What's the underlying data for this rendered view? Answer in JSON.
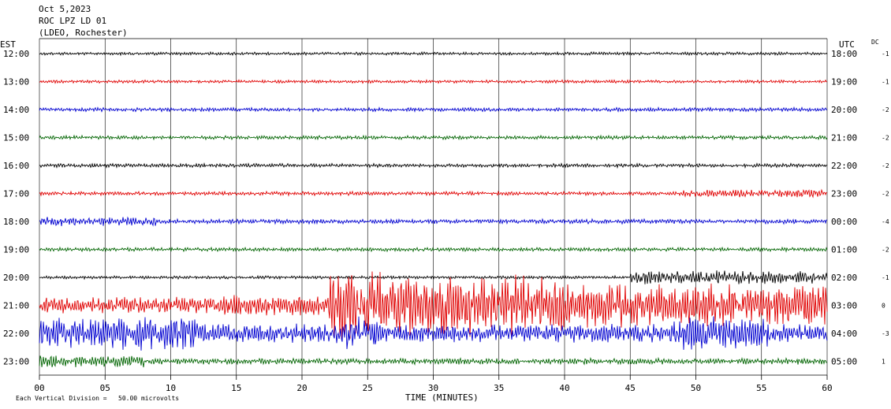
{
  "header": {
    "date": "Oct 5,2023",
    "station": "ROC LPZ LD 01",
    "network": "(LDEO, Rochester)"
  },
  "left_axis_title": "EST",
  "right_axis_title": "UTC",
  "dc_title": "DC",
  "footer": {
    "scale_note": "Each Vertical Division =   50.00 microvolts",
    "xlabel": "TIME (MINUTES)"
  },
  "chart_data": {
    "type": "line",
    "title": "ROC LPZ LD 01",
    "xlabel": "TIME (MINUTES)",
    "xlim": [
      0,
      60
    ],
    "x_ticks": [
      "00",
      "05",
      "10",
      "15",
      "20",
      "25",
      "30",
      "35",
      "40",
      "45",
      "50",
      "55",
      "60"
    ],
    "grid_minutes": [
      0,
      5,
      10,
      15,
      20,
      25,
      30,
      35,
      40,
      45,
      50,
      55,
      60
    ],
    "colors": [
      "#000000",
      "#e00000",
      "#0000d0",
      "#006400"
    ],
    "rows": [
      {
        "est": "12:00",
        "utc": "18:00",
        "dc": "-1",
        "color": "#000000",
        "segments": [
          [
            0,
            60,
            2
          ]
        ]
      },
      {
        "est": "13:00",
        "utc": "19:00",
        "dc": "-1",
        "color": "#e00000",
        "segments": [
          [
            0,
            60,
            2
          ]
        ]
      },
      {
        "est": "14:00",
        "utc": "20:00",
        "dc": "-2",
        "color": "#0000d0",
        "segments": [
          [
            0,
            60,
            2.5
          ]
        ]
      },
      {
        "est": "15:00",
        "utc": "21:00",
        "dc": "-2",
        "color": "#006400",
        "segments": [
          [
            0,
            60,
            2.5
          ]
        ]
      },
      {
        "est": "16:00",
        "utc": "22:00",
        "dc": "-2",
        "color": "#000000",
        "segments": [
          [
            0,
            60,
            2.5
          ]
        ]
      },
      {
        "est": "17:00",
        "utc": "23:00",
        "dc": "-2",
        "color": "#e00000",
        "segments": [
          [
            0,
            49,
            2.5
          ],
          [
            49,
            60,
            5
          ]
        ]
      },
      {
        "est": "18:00",
        "utc": "00:00",
        "dc": "-4",
        "color": "#0000d0",
        "segments": [
          [
            0,
            9,
            6
          ],
          [
            9,
            60,
            3
          ]
        ]
      },
      {
        "est": "19:00",
        "utc": "01:00",
        "dc": "-2",
        "color": "#006400",
        "segments": [
          [
            0,
            60,
            2.5
          ]
        ]
      },
      {
        "est": "20:00",
        "utc": "02:00",
        "dc": "-1",
        "color": "#000000",
        "segments": [
          [
            0,
            45,
            2
          ],
          [
            45,
            60,
            9
          ]
        ]
      },
      {
        "est": "21:00",
        "utc": "03:00",
        "dc": "0",
        "color": "#e00000",
        "segments": [
          [
            0,
            14,
            11
          ],
          [
            14,
            22,
            14
          ],
          [
            22,
            26,
            48
          ],
          [
            26,
            40,
            40
          ],
          [
            40,
            45,
            30
          ],
          [
            45,
            60,
            28
          ]
        ]
      },
      {
        "est": "22:00",
        "utc": "04:00",
        "dc": "-3",
        "color": "#0000d0",
        "segments": [
          [
            0,
            12,
            22
          ],
          [
            12,
            23,
            13
          ],
          [
            23,
            26,
            22
          ],
          [
            26,
            48,
            12
          ],
          [
            48,
            56,
            22
          ],
          [
            56,
            60,
            12
          ]
        ]
      },
      {
        "est": "23:00",
        "utc": "05:00",
        "dc": "1",
        "color": "#006400",
        "segments": [
          [
            0,
            8,
            8
          ],
          [
            8,
            60,
            4
          ]
        ]
      }
    ]
  }
}
